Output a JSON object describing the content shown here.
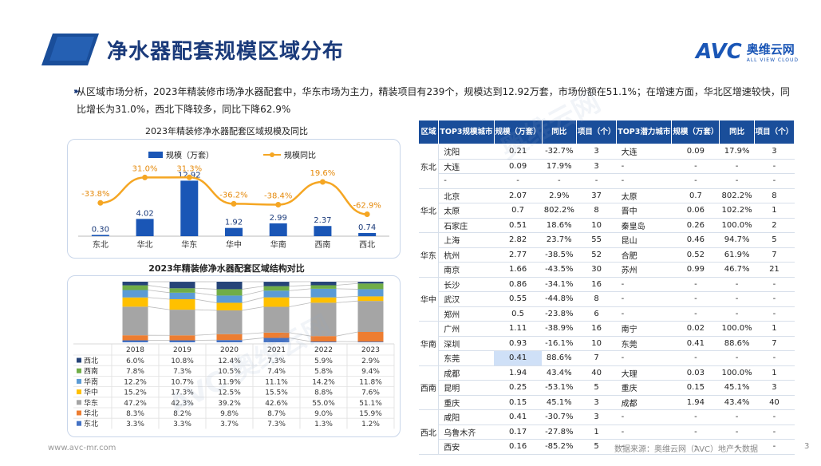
{
  "header": {
    "title": "净水器配套规模区域分布"
  },
  "logo": {
    "mark": "AVC",
    "cn": "奥维云网",
    "en": "ALL VIEW CLOUD"
  },
  "summary": "从区域市场分析，2023年精装修市场净水器配套中，华东市场为主力，精装项目有239个，规模达到12.92万套，市场份额在51.1%；在增速方面，华北区增速较快，同比增长为31.0%，西北下降较多，同比下降62.9%",
  "chart_data": [
    {
      "type": "bar",
      "title": "2023年精装修净水器配套区域规模及同比",
      "categories": [
        "东北",
        "华北",
        "华东",
        "华中",
        "华南",
        "西南",
        "西北"
      ],
      "series": [
        {
          "name": "规模（万套）",
          "type": "bar",
          "values": [
            0.3,
            4.02,
            12.92,
            1.92,
            2.99,
            2.37,
            0.74
          ],
          "labels": [
            "0.30",
            "4.02",
            "12.92",
            "1.92",
            "2.99",
            "2.37",
            "0.74"
          ]
        },
        {
          "name": "规模同比",
          "type": "line",
          "values": [
            -33.8,
            31.0,
            31.3,
            -36.2,
            -38.4,
            19.6,
            -62.9
          ],
          "labels": [
            "-33.8%",
            "31.0%",
            "31.3%",
            "-36.2%",
            "-38.4%",
            "19.6%",
            "-62.9%"
          ]
        }
      ],
      "colors": {
        "bar": "#1a56b6",
        "line": "#f5a623"
      },
      "legend": "top"
    },
    {
      "type": "bar",
      "stacked": true,
      "title": "2023年精装修净水器配套区域结构对比",
      "categories": [
        "2018",
        "2019",
        "2020",
        "2021",
        "2022",
        "2023"
      ],
      "series": [
        {
          "name": "东北",
          "color": "#4472c4",
          "values": [
            3.3,
            3.3,
            3.7,
            7.3,
            1.3,
            1.2
          ],
          "labels": [
            "3.3%",
            "3.3%",
            "3.7%",
            "7.3%",
            "1.3%",
            "1.2%"
          ]
        },
        {
          "name": "华北",
          "color": "#ed7d31",
          "values": [
            8.3,
            8.2,
            9.8,
            8.7,
            9.0,
            15.9
          ],
          "labels": [
            "8.3%",
            "8.2%",
            "9.8%",
            "8.7%",
            "9.0%",
            "15.9%"
          ]
        },
        {
          "name": "华东",
          "color": "#a5a5a5",
          "values": [
            47.2,
            42.3,
            39.2,
            42.6,
            55.0,
            51.1
          ],
          "labels": [
            "47.2%",
            "42.3%",
            "39.2%",
            "42.6%",
            "55.0%",
            "51.1%"
          ]
        },
        {
          "name": "华中",
          "color": "#ffc000",
          "values": [
            15.2,
            17.3,
            12.5,
            15.5,
            8.8,
            7.6
          ],
          "labels": [
            "15.2%",
            "17.3%",
            "12.5%",
            "15.5%",
            "8.8%",
            "7.6%"
          ]
        },
        {
          "name": "华南",
          "color": "#5b9bd5",
          "values": [
            12.2,
            10.7,
            11.9,
            11.1,
            14.2,
            11.8
          ],
          "labels": [
            "12.2%",
            "10.7%",
            "11.9%",
            "11.1%",
            "14.2%",
            "11.8%"
          ]
        },
        {
          "name": "西南",
          "color": "#70ad47",
          "values": [
            7.8,
            7.3,
            10.5,
            7.4,
            5.8,
            9.4
          ],
          "labels": [
            "7.8%",
            "7.3%",
            "10.5%",
            "7.4%",
            "5.8%",
            "9.4%"
          ]
        },
        {
          "name": "西北",
          "color": "#264478",
          "values": [
            6.0,
            10.8,
            12.4,
            7.3,
            5.9,
            2.9
          ],
          "labels": [
            "6.0%",
            "10.8%",
            "12.4%",
            "7.3%",
            "5.9%",
            "2.9%"
          ]
        }
      ],
      "ylim": [
        0,
        100
      ]
    }
  ],
  "table": {
    "headers": [
      "区域",
      "TOP3规模城市",
      "规模（万套）",
      "同比",
      "项目（个）",
      "TOP3潜力城市",
      "规模（万套）",
      "同比",
      "项目（个）"
    ],
    "groups": [
      {
        "region": "东北",
        "rows": [
          [
            "沈阳",
            "0.21",
            "-32.7%",
            "3",
            "大连",
            "0.09",
            "17.9%",
            "3"
          ],
          [
            "大连",
            "0.09",
            "17.9%",
            "3",
            "-",
            "-",
            "-",
            "-"
          ],
          [
            "-",
            "-",
            "-",
            "-",
            "-",
            "-",
            "-",
            "-"
          ]
        ]
      },
      {
        "region": "华北",
        "rows": [
          [
            "北京",
            "2.07",
            "2.9%",
            "37",
            "太原",
            "0.7",
            "802.2%",
            "8"
          ],
          [
            "太原",
            "0.7",
            "802.2%",
            "8",
            "晋中",
            "0.06",
            "102.2%",
            "1"
          ],
          [
            "石家庄",
            "0.51",
            "18.6%",
            "10",
            "秦皇岛",
            "0.26",
            "100.0%",
            "2"
          ]
        ]
      },
      {
        "region": "华东",
        "rows": [
          [
            "上海",
            "2.82",
            "23.7%",
            "55",
            "昆山",
            "0.46",
            "94.7%",
            "5"
          ],
          [
            "杭州",
            "2.77",
            "-38.5%",
            "52",
            "合肥",
            "0.52",
            "61.9%",
            "7"
          ],
          [
            "南京",
            "1.66",
            "-43.5%",
            "30",
            "苏州",
            "0.99",
            "46.7%",
            "21"
          ]
        ]
      },
      {
        "region": "华中",
        "rows": [
          [
            "长沙",
            "0.86",
            "-34.1%",
            "16",
            "-",
            "-",
            "-",
            "-"
          ],
          [
            "武汉",
            "0.55",
            "-44.8%",
            "8",
            "-",
            "-",
            "-",
            "-"
          ],
          [
            "郑州",
            "0.5",
            "-23.8%",
            "6",
            "-",
            "-",
            "-",
            "-"
          ]
        ]
      },
      {
        "region": "华南",
        "rows": [
          [
            "广州",
            "1.11",
            "-38.9%",
            "16",
            "南宁",
            "0.02",
            "100.0%",
            "1"
          ],
          [
            "深圳",
            "0.93",
            "-16.1%",
            "10",
            "东莞",
            "0.41",
            "88.6%",
            "7"
          ],
          [
            "东莞",
            "0.41",
            "88.6%",
            "7",
            "-",
            "-",
            "-",
            "-"
          ]
        ]
      },
      {
        "region": "西南",
        "rows": [
          [
            "成都",
            "1.94",
            "43.4%",
            "40",
            "大理",
            "0.03",
            "100.0%",
            "1"
          ],
          [
            "昆明",
            "0.25",
            "-53.1%",
            "5",
            "重庆",
            "0.15",
            "45.1%",
            "3"
          ],
          [
            "重庆",
            "0.15",
            "45.1%",
            "3",
            "成都",
            "1.94",
            "43.4%",
            "40"
          ]
        ]
      },
      {
        "region": "西北",
        "rows": [
          [
            "咸阳",
            "0.41",
            "-30.7%",
            "3",
            "-",
            "-",
            "-",
            "-"
          ],
          [
            "乌鲁木齐",
            "0.17",
            "-27.8%",
            "1",
            "-",
            "-",
            "-",
            "-"
          ],
          [
            "西安",
            "0.16",
            "-85.2%",
            "5",
            "-",
            "-",
            "-",
            "-"
          ]
        ]
      }
    ]
  },
  "footer": {
    "url": "www.avc-mr.com",
    "source": "数据来源：奥维云网（AVC）地产大数据",
    "page": "3"
  }
}
